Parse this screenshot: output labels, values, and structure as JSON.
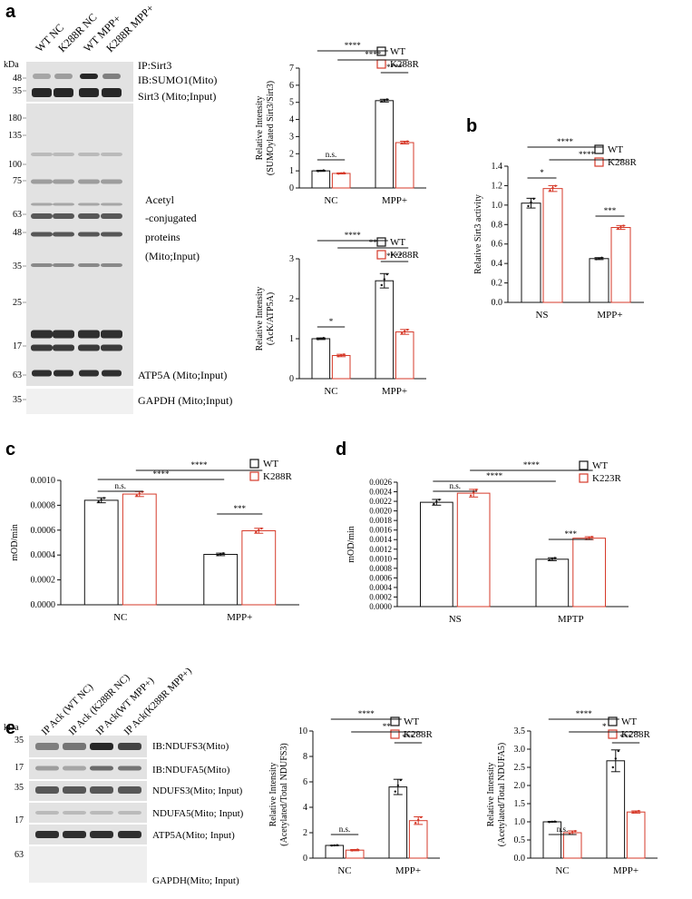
{
  "panels": {
    "a": "a",
    "b": "b",
    "c": "c",
    "d": "d",
    "e": "e"
  },
  "colors": {
    "wt": "#111111",
    "mut": "#d63a2a",
    "band": "#1c1c1c",
    "blot_bg": "#e2e2e2"
  },
  "blot_a": {
    "lanes": [
      "WT NC",
      "K288R NC",
      "WT MPP+",
      "K288R MPP+"
    ],
    "kda_header": "kDa",
    "markers": [
      "48",
      "35",
      "180",
      "135",
      "100",
      "75",
      "63",
      "48",
      "35",
      "25",
      "17",
      "63",
      "35"
    ],
    "labels": [
      "IP:Sirt3",
      "IB:SUMO1(Mito)",
      "Sirt3 (Mito;Input)",
      "Acetyl",
      "-conjugated",
      "proteins",
      "(Mito;Input)",
      "ATP5A (Mito;Input)",
      "GAPDH (Mito;Input)"
    ]
  },
  "blot_e": {
    "lanes": [
      "IP Ack (WT NC)",
      "IP Ack (K288R NC)",
      "IP Ack(WT MPP+)",
      "IP Ack(K288R MPP+)"
    ],
    "kda_header": "kDa",
    "markers": [
      "35",
      "17",
      "35",
      "17",
      "63"
    ],
    "labels": [
      "IB:NDUFS3(Mito)",
      "IB:NDUFA5(Mito)",
      "NDUFS3(Mito; Input)",
      "NDUFA5(Mito; Input)",
      "ATP5A(Mito; Input)",
      "GAPDH(Mito; Input)"
    ]
  },
  "chart_data": [
    {
      "id": "a1",
      "type": "bar",
      "categories": [
        "NC",
        "MPP+"
      ],
      "series": [
        {
          "name": "WT",
          "values": [
            1.0,
            5.1
          ],
          "errors": [
            0.03,
            0.08
          ]
        },
        {
          "name": "K288R",
          "values": [
            0.85,
            2.65
          ],
          "errors": [
            0.03,
            0.08
          ]
        }
      ],
      "ylabel": [
        "Relative Intensity",
        "(SUMOylated Sirt3/Sirt3)"
      ],
      "ylim": [
        0,
        7
      ],
      "yticks": [
        "0",
        "1",
        "2",
        "3",
        "4",
        "5",
        "6",
        "7"
      ],
      "significance": [
        "n.s.",
        "****",
        "****",
        "****"
      ],
      "legend": "top-right"
    },
    {
      "id": "a2",
      "type": "bar",
      "categories": [
        "NC",
        "MPP+"
      ],
      "series": [
        {
          "name": "WT",
          "values": [
            1.0,
            2.45
          ],
          "errors": [
            0.02,
            0.18
          ]
        },
        {
          "name": "K288R",
          "values": [
            0.58,
            1.17
          ],
          "errors": [
            0.03,
            0.06
          ]
        }
      ],
      "ylabel": [
        "Relative Intensity",
        "(AcK/ATP5A)"
      ],
      "ylim": [
        0,
        3
      ],
      "yticks": [
        "0",
        "1",
        "2",
        "3"
      ],
      "significance": [
        "*",
        "****",
        "**",
        "****"
      ],
      "legend": "top-right"
    },
    {
      "id": "b",
      "type": "bar",
      "categories": [
        "NS",
        "MPP+"
      ],
      "series": [
        {
          "name": "WT",
          "values": [
            1.02,
            0.45
          ],
          "errors": [
            0.05,
            0.01
          ]
        },
        {
          "name": "K288R",
          "values": [
            1.17,
            0.77
          ],
          "errors": [
            0.03,
            0.02
          ]
        }
      ],
      "ylabel": [
        "Relative Sirt3 activity"
      ],
      "ylim": [
        0,
        1.4
      ],
      "yticks": [
        "0.0",
        "0.2",
        "0.4",
        "0.6",
        "0.8",
        "1.0",
        "1.2",
        "1.4"
      ],
      "significance": [
        "*",
        "****",
        "****",
        "***"
      ],
      "legend": "top-right"
    },
    {
      "id": "c",
      "type": "bar",
      "categories": [
        "NC",
        "MPP+"
      ],
      "series": [
        {
          "name": "WT",
          "values": [
            0.00084,
            0.000405
          ],
          "errors": [
            2e-05,
            1e-05
          ]
        },
        {
          "name": "K288R",
          "values": [
            0.00089,
            0.000595
          ],
          "errors": [
            2e-05,
            2e-05
          ]
        }
      ],
      "ylabel": [
        "mOD/min"
      ],
      "ylim": [
        0,
        0.001
      ],
      "yticks": [
        "0.0000",
        "0.0002",
        "0.0004",
        "0.0006",
        "0.0008",
        "0.0010"
      ],
      "significance": [
        "n.s.",
        "****",
        "****",
        "***"
      ],
      "legend": "top-right"
    },
    {
      "id": "d",
      "type": "bar",
      "categories": [
        "NS",
        "MPTP"
      ],
      "series": [
        {
          "name": "WT",
          "values": [
            0.00218,
            0.00099
          ],
          "errors": [
            6e-05,
            3e-05
          ]
        },
        {
          "name": "K223R",
          "values": [
            0.00237,
            0.00143
          ],
          "errors": [
            8e-05,
            3e-05
          ]
        }
      ],
      "ylabel": [
        "mOD/min"
      ],
      "ylim": [
        0,
        0.0026
      ],
      "yticks": [
        "0.0000",
        "0.0002",
        "0.0004",
        "0.0006",
        "0.0008",
        "0.0010",
        "0.0012",
        "0.0014",
        "0.0016",
        "0.0018",
        "0.0020",
        "0.0022",
        "0.0024",
        "0.0026"
      ],
      "significance": [
        "n.s.",
        "****",
        "****",
        "***"
      ],
      "legend": "top-right"
    },
    {
      "id": "e1",
      "type": "bar",
      "categories": [
        "NC",
        "MPP+"
      ],
      "series": [
        {
          "name": "WT",
          "values": [
            1.0,
            5.6
          ],
          "errors": [
            0.02,
            0.6
          ]
        },
        {
          "name": "K288R",
          "values": [
            0.63,
            2.95
          ],
          "errors": [
            0.05,
            0.3
          ]
        }
      ],
      "ylabel": [
        "Relative Intensity",
        "(Acetylated/Total NDUFS3)"
      ],
      "ylim": [
        0,
        10
      ],
      "yticks": [
        "0",
        "2",
        "4",
        "6",
        "8",
        "10"
      ],
      "significance": [
        "n.s.",
        "****",
        "**",
        "***"
      ],
      "legend": "top-right"
    },
    {
      "id": "e2",
      "type": "bar",
      "categories": [
        "NC",
        "MPP+"
      ],
      "series": [
        {
          "name": "WT",
          "values": [
            1.0,
            2.68
          ],
          "errors": [
            0.01,
            0.3
          ]
        },
        {
          "name": "K288R",
          "values": [
            0.7,
            1.27
          ],
          "errors": [
            0.05,
            0.03
          ]
        }
      ],
      "ylabel": [
        "Relative Intensity",
        "(Acetylated/Total NDUFA5)"
      ],
      "ylim": [
        0,
        3.5
      ],
      "yticks": [
        "0.0",
        "0.5",
        "1.0",
        "1.5",
        "2.0",
        "2.5",
        "3.0",
        "3.5"
      ],
      "significance": [
        "n.s.",
        "****",
        "*",
        "***"
      ],
      "legend": "top-right"
    }
  ]
}
